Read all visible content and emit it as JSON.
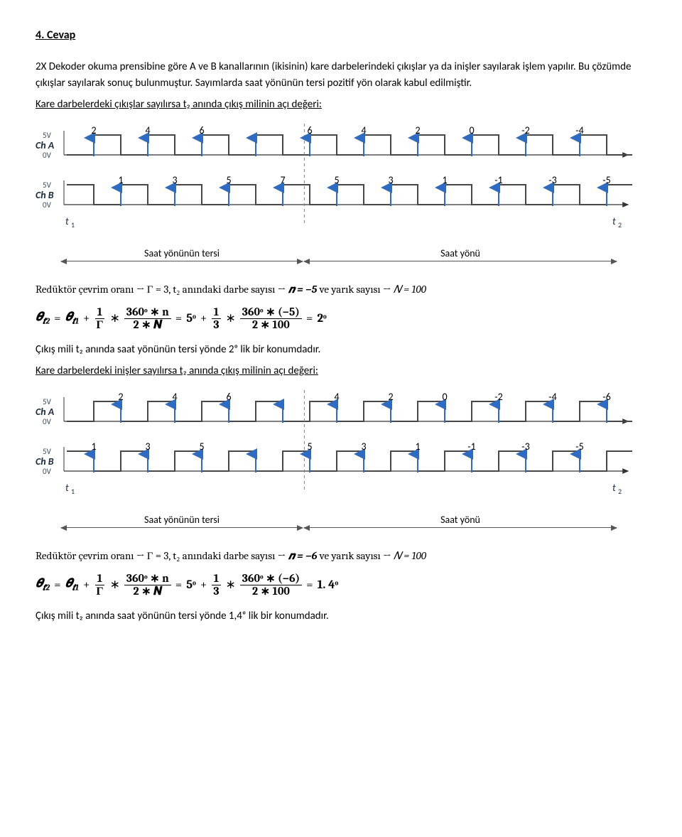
{
  "heading": "4. Cevap",
  "intro": "2X Dekoder okuma prensibine göre A ve B kanallarının (ikisinin) kare darbelerindeki çıkışlar ya da inişler sayılarak işlem yapılır. Bu çözümde çıkışlar sayılarak sonuç bulunmuştur. Sayımlarda saat yönünün tersi pozitif yön olarak kabul edilmiştir.",
  "sub1": "Kare darbelerdeki çıkışlar sayılırsa t₂ anında çıkış milinin açı değeri:",
  "sub2": "Kare darbelerdeki inişler sayılırsa t₂ anında çıkış milinin açı değeri:",
  "dir_left": "Saat yönünün tersi",
  "dir_right": "Saat yönü",
  "chA_label": "Ch A",
  "chB_label": "Ch B",
  "t1_label": "t₁",
  "t2_label": "t₂",
  "chart1": {
    "topNums": [
      "2",
      "4",
      "6",
      "",
      "6",
      "4",
      "2",
      "0",
      "-2",
      "-4"
    ],
    "botNums": [
      "1",
      "3",
      "5",
      "7",
      "5",
      "3",
      "1",
      "-1",
      "-3",
      "-5"
    ]
  },
  "chart2": {
    "topNums": [
      "2",
      "4",
      "6",
      "",
      "4",
      "2",
      "0",
      "-2",
      "-4",
      "-6"
    ],
    "botNums": [
      "1",
      "3",
      "5",
      "",
      "5",
      "3",
      "1",
      "-1",
      "-3",
      "-5"
    ]
  },
  "mathline1_pre": "Redüktör çevrim oranı → Γ = 3,   t₂ anındaki darbe sayısı → ",
  "mathline1_n": "𝒏 = −5",
  "mathline1_mid": "  ve   yarık sayısı  → ",
  "mathline1_N": "𝑁 = 100",
  "mathline2_pre": "Redüktör çevrim oranı → Γ = 3,   t₂ anındaki darbe sayısı → ",
  "mathline2_n": "𝒏 = −6",
  "mathline2_mid": "  ve   yarık sayısı  → ",
  "mathline2_N": "𝑁 = 100",
  "eq_lhs": "𝜽",
  "eq_t2": "𝒕2",
  "eq_t1": "𝒕1",
  "eq_eq": "=",
  "eq_plus": "+",
  "eq_ast": "∗",
  "frac_1": "1",
  "frac_G": "Γ",
  "frac_360n_num": "360ᵒ ∗ n",
  "frac_2N_den": "2 ∗ 𝑵",
  "eq_5o": "5ᵒ",
  "frac_1_3_num": "1",
  "frac_1_3_den": "3",
  "frac2a_num": "360ᵒ ∗ (−5)",
  "frac2b_num": "360ᵒ ∗ (−6)",
  "frac2_den": "2 ∗ 100",
  "res1": "2ᵒ",
  "res2": "1. 4ᵒ",
  "concl1": "Çıkış mili t₂ anında saat yönünün tersi yönde 2ᵒ lik bir konumdadır.",
  "concl2": "Çıkış mili t₂ anında saat yönünün tersi yönde 1,4ᵒ lik bir konumdadır.",
  "colors": {
    "arrow": "#2e6cc4",
    "wave": "#474747",
    "axis": "#333333",
    "dashed": "#808080",
    "text": "#000000",
    "ylabel": "#3a4a5a"
  }
}
